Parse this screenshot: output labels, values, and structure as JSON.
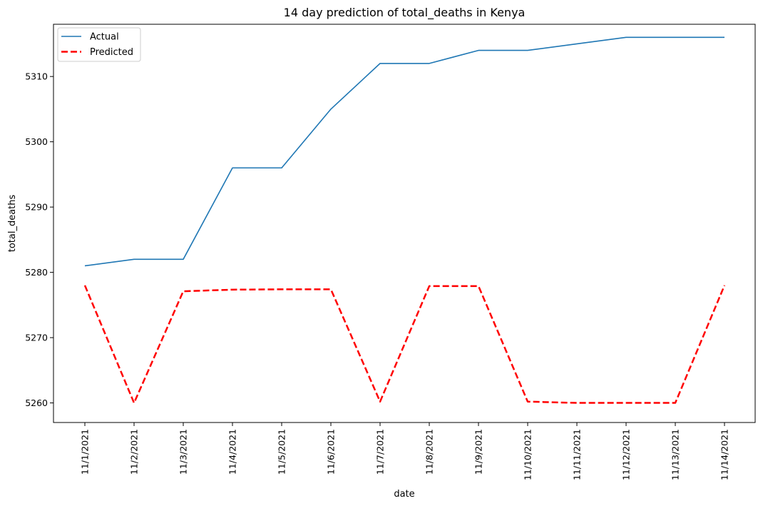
{
  "chart_data": {
    "type": "line",
    "title": "14 day prediction of total_deaths in Kenya",
    "xlabel": "date",
    "ylabel": "total_deaths",
    "categories": [
      "11/1/2021",
      "11/2/2021",
      "11/3/2021",
      "11/4/2021",
      "11/5/2021",
      "11/6/2021",
      "11/7/2021",
      "11/8/2021",
      "11/9/2021",
      "11/10/2021",
      "11/11/2021",
      "11/12/2021",
      "11/13/2021",
      "11/14/2021"
    ],
    "yticks": [
      5260,
      5270,
      5280,
      5290,
      5300,
      5310
    ],
    "ylim": [
      5257,
      5318
    ],
    "grid": false,
    "legend_position": "top-left",
    "series": [
      {
        "name": "Actual",
        "color": "#1f77b4",
        "dash": "solid",
        "values": [
          5281,
          5282,
          5282,
          5296,
          5296,
          5305,
          5312,
          5312,
          5314,
          5314,
          5315,
          5316,
          5316,
          5316
        ]
      },
      {
        "name": "Predicted",
        "color": "#ff0000",
        "dash": "dashed",
        "values": [
          5278,
          5260,
          5277.1,
          5277.35,
          5277.4,
          5277.4,
          5260.2,
          5277.9,
          5277.9,
          5260.2,
          5260,
          5260,
          5260,
          5278
        ]
      }
    ]
  }
}
